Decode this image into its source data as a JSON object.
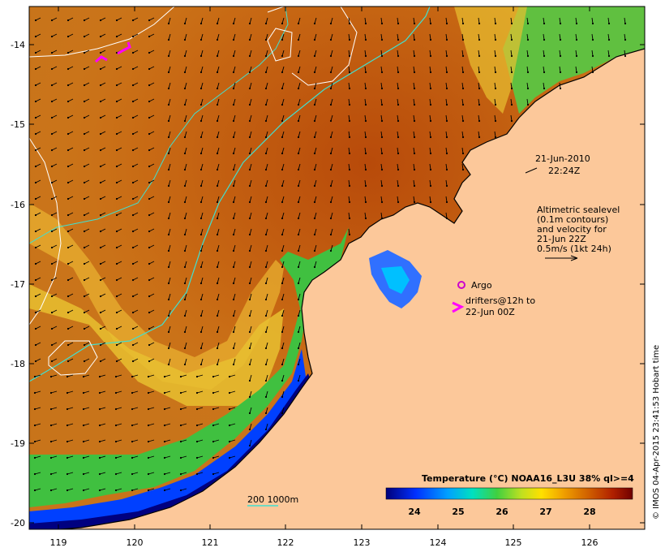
{
  "map": {
    "lon_ticks": [
      "119",
      "120",
      "121",
      "122",
      "123",
      "124",
      "125",
      "126"
    ],
    "lat_ticks": [
      "-14",
      "-15",
      "-16",
      "-17",
      "-18",
      "-19",
      "-20"
    ],
    "date_line1": "21-Jun-2010",
    "date_line2": "22:24Z",
    "altimetry": [
      "Altimetric sealevel",
      "(0.1m contours)",
      "and velocity for",
      "21-Jun 22Z",
      "0.5m/s (1kt 24h)"
    ],
    "argo_label": "Argo",
    "drifters_line1": "drifters@12h to",
    "drifters_line2": "22-Jun 00Z",
    "bathy_label": "200  1000m",
    "colorbar_title": "Temperature (°C) NOAA16_L3U 38% ql>=4",
    "colorbar_ticks": [
      "24",
      "25",
      "26",
      "27",
      "28"
    ],
    "credit": "© IMOS 04-Apr-2015 23:41:53 Hobart time",
    "colors": {
      "land": "#fcc89a",
      "argo": "#cc00cc",
      "drifter": "#ff00ff",
      "bathy": "#40e0d0"
    }
  }
}
